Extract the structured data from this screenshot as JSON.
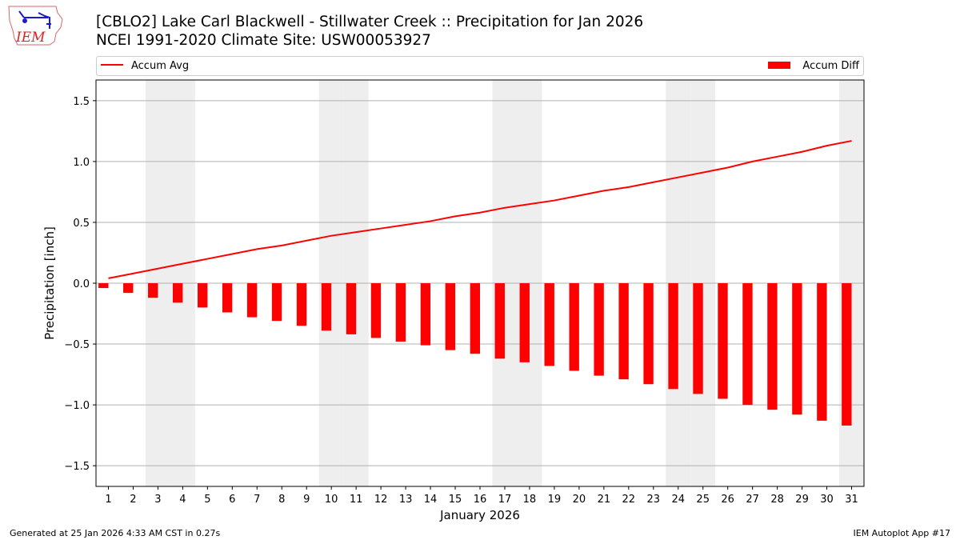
{
  "header": {
    "logo_text": "IEM",
    "title_line1": "[CBLO2] Lake Carl Blackwell - Stillwater Creek :: Precipitation for Jan 2026",
    "title_line2": "NCEI 1991-2020 Climate Site: USW00053927"
  },
  "footer": {
    "left": "Generated at 25 Jan 2026 4:33 AM CST in 0.27s",
    "right": "IEM Autoplot App #17"
  },
  "chart_data": {
    "type": "bar",
    "xlabel": "January 2026",
    "ylabel": "Precipitation [inch]",
    "xlim": [
      0.5,
      31.5
    ],
    "ylim": [
      -1.67,
      1.67
    ],
    "yticks": [
      -1.5,
      -1.0,
      -0.5,
      0.0,
      0.5,
      1.0,
      1.5
    ],
    "ytick_labels": [
      "−1.5",
      "−1.0",
      "−0.5",
      "0.0",
      "0.5",
      "1.0",
      "1.5"
    ],
    "grid": "horizontal",
    "legend_placement": "top, above plot",
    "weekend_shading_days": [
      3,
      4,
      10,
      11,
      17,
      18,
      24,
      25,
      31
    ],
    "shading_color": "#eeeeee",
    "x": [
      1,
      2,
      3,
      4,
      5,
      6,
      7,
      8,
      9,
      10,
      11,
      12,
      13,
      14,
      15,
      16,
      17,
      18,
      19,
      20,
      21,
      22,
      23,
      24,
      25,
      26,
      27,
      28,
      29,
      30,
      31
    ],
    "series": [
      {
        "name": "Accum Avg",
        "kind": "line",
        "color": "#ff0000",
        "values": [
          0.04,
          0.08,
          0.12,
          0.16,
          0.2,
          0.24,
          0.28,
          0.31,
          0.35,
          0.39,
          0.42,
          0.45,
          0.48,
          0.51,
          0.55,
          0.58,
          0.62,
          0.65,
          0.68,
          0.72,
          0.76,
          0.79,
          0.83,
          0.87,
          0.91,
          0.95,
          1.0,
          1.04,
          1.08,
          1.13,
          1.17
        ]
      },
      {
        "name": "Accum Diff",
        "kind": "bar",
        "color": "#ff0000",
        "values": [
          -0.04,
          -0.08,
          -0.12,
          -0.16,
          -0.2,
          -0.24,
          -0.28,
          -0.31,
          -0.35,
          -0.39,
          -0.42,
          -0.45,
          -0.48,
          -0.51,
          -0.55,
          -0.58,
          -0.62,
          -0.65,
          -0.68,
          -0.72,
          -0.76,
          -0.79,
          -0.83,
          -0.87,
          -0.91,
          -0.95,
          -1.0,
          -1.04,
          -1.08,
          -1.13,
          -1.17
        ]
      }
    ]
  }
}
